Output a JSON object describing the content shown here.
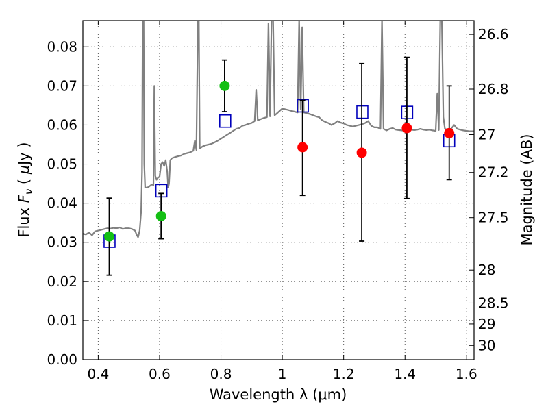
{
  "chart_data": {
    "type": "scatter",
    "xlabel": "Wavelength  λ (μm)",
    "ylabel_parts": [
      "Flux  ",
      "F",
      "ν",
      "  ( ",
      "μ",
      "Jy )"
    ],
    "y2label": "Magnitude (AB)",
    "xlim": [
      0.35,
      1.625
    ],
    "ylim": [
      0.0,
      0.0867
    ],
    "grid": true,
    "x_ticks": [
      {
        "value": 0.4,
        "label": "0.4"
      },
      {
        "value": 0.6,
        "label": "0.6"
      },
      {
        "value": 0.8,
        "label": "0.8"
      },
      {
        "value": 1.0,
        "label": "1"
      },
      {
        "value": 1.2,
        "label": "1.2"
      },
      {
        "value": 1.4,
        "label": "1.4"
      },
      {
        "value": 1.6,
        "label": "1.6"
      }
    ],
    "y_ticks": [
      {
        "value": 0.0,
        "label": "0.00"
      },
      {
        "value": 0.01,
        "label": "0.01"
      },
      {
        "value": 0.02,
        "label": "0.02"
      },
      {
        "value": 0.03,
        "label": "0.03"
      },
      {
        "value": 0.04,
        "label": "0.04"
      },
      {
        "value": 0.05,
        "label": "0.05"
      },
      {
        "value": 0.06,
        "label": "0.06"
      },
      {
        "value": 0.07,
        "label": "0.07"
      },
      {
        "value": 0.08,
        "label": "0.08"
      }
    ],
    "y2_ticks": [
      {
        "mag": 26.6,
        "label": "26.6"
      },
      {
        "mag": 26.8,
        "label": "26.8"
      },
      {
        "mag": 27.0,
        "label": "27"
      },
      {
        "mag": 27.2,
        "label": "27.2"
      },
      {
        "mag": 27.5,
        "label": "27.5"
      },
      {
        "mag": 28.0,
        "label": "28"
      },
      {
        "mag": 28.5,
        "label": "28.5"
      },
      {
        "mag": 29.0,
        "label": "29"
      },
      {
        "mag": 30.0,
        "label": "30"
      }
    ],
    "colors": {
      "spectrum": "#808080",
      "green": "#14bf14",
      "red": "#ff0000",
      "square": "#0000bb",
      "errorbar": "#000000",
      "grid": "#555555"
    },
    "spectrum": [
      [
        0.35,
        0.0322
      ],
      [
        0.36,
        0.032
      ],
      [
        0.37,
        0.0325
      ],
      [
        0.38,
        0.0318
      ],
      [
        0.39,
        0.0328
      ],
      [
        0.4,
        0.033
      ],
      [
        0.41,
        0.0332
      ],
      [
        0.42,
        0.0334
      ],
      [
        0.43,
        0.0336
      ],
      [
        0.44,
        0.0335
      ],
      [
        0.45,
        0.0337
      ],
      [
        0.46,
        0.0336
      ],
      [
        0.47,
        0.0338
      ],
      [
        0.48,
        0.0334
      ],
      [
        0.49,
        0.0336
      ],
      [
        0.5,
        0.0336
      ],
      [
        0.51,
        0.0334
      ],
      [
        0.52,
        0.033
      ],
      [
        0.525,
        0.032
      ],
      [
        0.53,
        0.0313
      ],
      [
        0.535,
        0.033
      ],
      [
        0.54,
        0.038
      ],
      [
        0.543,
        0.048
      ],
      [
        0.545,
        0.087
      ],
      [
        0.548,
        0.087
      ],
      [
        0.55,
        0.05
      ],
      [
        0.553,
        0.044
      ],
      [
        0.56,
        0.044
      ],
      [
        0.565,
        0.0442
      ],
      [
        0.57,
        0.0445
      ],
      [
        0.575,
        0.0448
      ],
      [
        0.58,
        0.0446
      ],
      [
        0.583,
        0.07
      ],
      [
        0.586,
        0.047
      ],
      [
        0.59,
        0.046
      ],
      [
        0.595,
        0.0465
      ],
      [
        0.6,
        0.0468
      ],
      [
        0.605,
        0.05
      ],
      [
        0.61,
        0.0505
      ],
      [
        0.615,
        0.0495
      ],
      [
        0.62,
        0.051
      ],
      [
        0.625,
        0.048
      ],
      [
        0.628,
        0.044
      ],
      [
        0.631,
        0.045
      ],
      [
        0.635,
        0.051
      ],
      [
        0.64,
        0.0515
      ],
      [
        0.65,
        0.0518
      ],
      [
        0.66,
        0.052
      ],
      [
        0.67,
        0.0522
      ],
      [
        0.68,
        0.0526
      ],
      [
        0.69,
        0.0528
      ],
      [
        0.7,
        0.053
      ],
      [
        0.71,
        0.0534
      ],
      [
        0.715,
        0.056
      ],
      [
        0.72,
        0.0536
      ],
      [
        0.725,
        0.087
      ],
      [
        0.728,
        0.087
      ],
      [
        0.731,
        0.054
      ],
      [
        0.74,
        0.0545
      ],
      [
        0.75,
        0.0548
      ],
      [
        0.76,
        0.055
      ],
      [
        0.77,
        0.0552
      ],
      [
        0.78,
        0.0556
      ],
      [
        0.79,
        0.056
      ],
      [
        0.8,
        0.0565
      ],
      [
        0.81,
        0.057
      ],
      [
        0.82,
        0.0575
      ],
      [
        0.83,
        0.058
      ],
      [
        0.84,
        0.0585
      ],
      [
        0.85,
        0.059
      ],
      [
        0.86,
        0.0592
      ],
      [
        0.87,
        0.0598
      ],
      [
        0.88,
        0.06
      ],
      [
        0.89,
        0.0603
      ],
      [
        0.9,
        0.0605
      ],
      [
        0.91,
        0.061
      ],
      [
        0.915,
        0.069
      ],
      [
        0.92,
        0.0612
      ],
      [
        0.93,
        0.0615
      ],
      [
        0.94,
        0.0618
      ],
      [
        0.95,
        0.062
      ],
      [
        0.955,
        0.086
      ],
      [
        0.96,
        0.0622
      ],
      [
        0.965,
        0.087
      ],
      [
        0.97,
        0.087
      ],
      [
        0.975,
        0.0625
      ],
      [
        0.98,
        0.0628
      ],
      [
        0.99,
        0.0635
      ],
      [
        1.0,
        0.0642
      ],
      [
        1.01,
        0.064
      ],
      [
        1.02,
        0.0638
      ],
      [
        1.03,
        0.0636
      ],
      [
        1.04,
        0.0634
      ],
      [
        1.05,
        0.0632
      ],
      [
        1.055,
        0.087
      ],
      [
        1.06,
        0.064
      ],
      [
        1.065,
        0.085
      ],
      [
        1.07,
        0.0632
      ],
      [
        1.08,
        0.063
      ],
      [
        1.09,
        0.0628
      ],
      [
        1.1,
        0.0625
      ],
      [
        1.11,
        0.0622
      ],
      [
        1.12,
        0.062
      ],
      [
        1.13,
        0.0612
      ],
      [
        1.14,
        0.0608
      ],
      [
        1.15,
        0.0605
      ],
      [
        1.16,
        0.06
      ],
      [
        1.17,
        0.0604
      ],
      [
        1.18,
        0.061
      ],
      [
        1.19,
        0.0606
      ],
      [
        1.2,
        0.0604
      ],
      [
        1.21,
        0.06
      ],
      [
        1.22,
        0.0598
      ],
      [
        1.23,
        0.0596
      ],
      [
        1.24,
        0.0598
      ],
      [
        1.25,
        0.06
      ],
      [
        1.26,
        0.0602
      ],
      [
        1.27,
        0.0605
      ],
      [
        1.28,
        0.061
      ],
      [
        1.29,
        0.0598
      ],
      [
        1.3,
        0.0594
      ],
      [
        1.31,
        0.0594
      ],
      [
        1.32,
        0.059
      ],
      [
        1.325,
        0.087
      ],
      [
        1.33,
        0.059
      ],
      [
        1.34,
        0.0586
      ],
      [
        1.35,
        0.059
      ],
      [
        1.36,
        0.0592
      ],
      [
        1.37,
        0.0588
      ],
      [
        1.38,
        0.0587
      ],
      [
        1.39,
        0.0586
      ],
      [
        1.4,
        0.0585
      ],
      [
        1.41,
        0.0586
      ],
      [
        1.42,
        0.0588
      ],
      [
        1.43,
        0.0587
      ],
      [
        1.44,
        0.0588
      ],
      [
        1.45,
        0.059
      ],
      [
        1.46,
        0.0588
      ],
      [
        1.47,
        0.0587
      ],
      [
        1.48,
        0.0588
      ],
      [
        1.49,
        0.0586
      ],
      [
        1.5,
        0.0585
      ],
      [
        1.505,
        0.068
      ],
      [
        1.51,
        0.0587
      ],
      [
        1.515,
        0.087
      ],
      [
        1.52,
        0.087
      ],
      [
        1.525,
        0.062
      ],
      [
        1.53,
        0.059
      ],
      [
        1.54,
        0.0588
      ],
      [
        1.55,
        0.059
      ],
      [
        1.56,
        0.06
      ],
      [
        1.57,
        0.059
      ],
      [
        1.58,
        0.0588
      ],
      [
        1.59,
        0.0586
      ],
      [
        1.6,
        0.0585
      ],
      [
        1.61,
        0.0584
      ],
      [
        1.625,
        0.0584
      ]
    ],
    "squares": [
      {
        "x": 0.437,
        "y": 0.0303
      },
      {
        "x": 0.606,
        "y": 0.0432
      },
      {
        "x": 0.814,
        "y": 0.061
      },
      {
        "x": 1.067,
        "y": 0.0649
      },
      {
        "x": 1.261,
        "y": 0.0633
      },
      {
        "x": 1.407,
        "y": 0.0632
      },
      {
        "x": 1.544,
        "y": 0.056
      }
    ],
    "points": [
      {
        "x": 0.436,
        "y": 0.0315,
        "err_low": 0.0216,
        "err_high": 0.0413,
        "color": "green"
      },
      {
        "x": 0.605,
        "y": 0.0367,
        "err_low": 0.0309,
        "err_high": 0.0425,
        "color": "green"
      },
      {
        "x": 0.812,
        "y": 0.07,
        "err_low": 0.0634,
        "err_high": 0.0766,
        "color": "green"
      },
      {
        "x": 1.066,
        "y": 0.0543,
        "err_low": 0.042,
        "err_high": 0.0663,
        "color": "red"
      },
      {
        "x": 1.259,
        "y": 0.0529,
        "err_low": 0.0303,
        "err_high": 0.0757,
        "color": "red"
      },
      {
        "x": 1.406,
        "y": 0.0592,
        "err_low": 0.0412,
        "err_high": 0.0773,
        "color": "red"
      },
      {
        "x": 1.544,
        "y": 0.0579,
        "err_low": 0.046,
        "err_high": 0.07,
        "color": "red"
      }
    ]
  }
}
